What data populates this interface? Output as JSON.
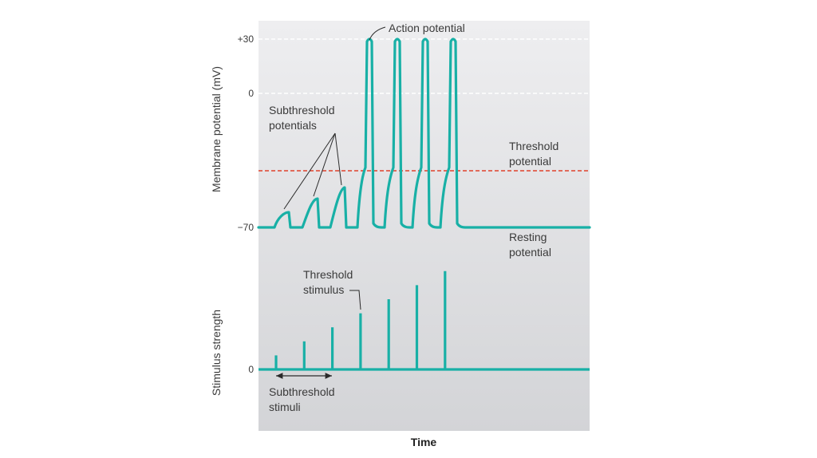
{
  "chart_data": [
    {
      "type": "line",
      "ylabel": "Membrane potential (mV)",
      "yticks": [
        "+30",
        "0",
        "−70"
      ],
      "ytick_values": [
        30,
        0,
        -70
      ],
      "ylim": [
        -70,
        30
      ],
      "threshold_mV": -40,
      "resting_mV": -70,
      "subthreshold_peaks_mV": [
        -62,
        -55,
        -49
      ],
      "action_potential_peak_mV": 30,
      "action_potential_count": 4,
      "annotations": {
        "action_potential": "Action potential",
        "subthreshold_potentials": [
          "Subthreshold",
          "potentials"
        ],
        "threshold_potential": [
          "Threshold",
          "potential"
        ],
        "resting_potential": [
          "Resting",
          "potential"
        ]
      },
      "colors": {
        "trace": "#18b0a6",
        "threshold": "#e0412c",
        "reference": "#ffffff"
      }
    },
    {
      "type": "bar",
      "ylabel": "Stimulus strength",
      "yticks": [
        "0"
      ],
      "values": [
        1,
        2,
        3,
        4,
        5,
        6,
        7
      ],
      "threshold_index": 3,
      "annotations": {
        "threshold_stimulus": [
          "Threshold",
          "stimulus"
        ],
        "subthreshold_stimuli": [
          "Subthreshold",
          "stimuli"
        ]
      },
      "xlabel": "Time",
      "colors": {
        "bar": "#18b0a6"
      }
    }
  ]
}
